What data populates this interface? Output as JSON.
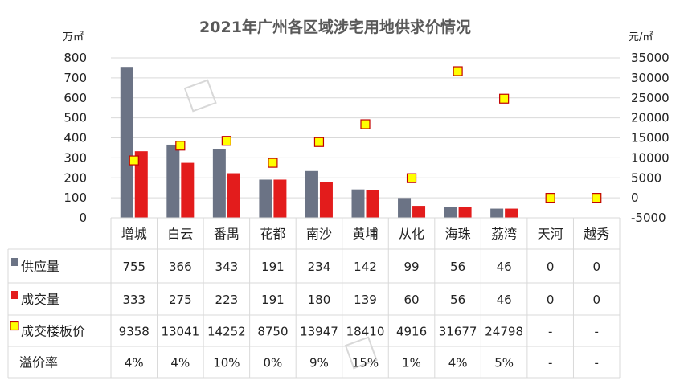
{
  "chart_data": {
    "type": "bar",
    "title": "2021年广州各区域涉宅用地供求价情况",
    "y_left_unit": "万㎡",
    "y_right_unit": "元/㎡",
    "ylim_left": [
      0,
      800
    ],
    "yticks_left": [
      "0",
      "100",
      "200",
      "300",
      "400",
      "500",
      "600",
      "700",
      "800"
    ],
    "ylim_right": [
      -5000,
      35000
    ],
    "yticks_right": [
      "-5000",
      "0",
      "5000",
      "10000",
      "15000",
      "20000",
      "25000",
      "30000",
      "35000"
    ],
    "categories": [
      "增城",
      "白云",
      "番禺",
      "花都",
      "南沙",
      "黄埔",
      "从化",
      "海珠",
      "荔湾",
      "天河",
      "越秀"
    ],
    "series": [
      {
        "name": "供应量",
        "type": "bar",
        "axis": "left",
        "color": "#6b7385",
        "values": [
          755,
          366,
          343,
          191,
          234,
          142,
          99,
          56,
          46,
          0,
          0
        ],
        "labels": [
          "755",
          "366",
          "343",
          "191",
          "234",
          "142",
          "99",
          "56",
          "46",
          "0",
          "0"
        ]
      },
      {
        "name": "成交量",
        "type": "bar",
        "axis": "left",
        "color": "#e31c1c",
        "values": [
          333,
          275,
          223,
          191,
          180,
          139,
          60,
          56,
          46,
          0,
          0
        ],
        "labels": [
          "333",
          "275",
          "223",
          "191",
          "180",
          "139",
          "60",
          "56",
          "46",
          "0",
          "0"
        ]
      },
      {
        "name": "成交楼板价",
        "type": "scatter",
        "axis": "right",
        "color": "#ffff00",
        "edge_color": "#c00000",
        "values": [
          9358,
          13041,
          14252,
          8750,
          13947,
          18410,
          4916,
          31677,
          24798,
          0,
          0
        ],
        "labels": [
          "9358",
          "13041",
          "14252",
          "8750",
          "13947",
          "18410",
          "4916",
          "31677",
          "24798",
          "-",
          "-"
        ]
      }
    ],
    "extra_rows": [
      {
        "name": "溢价率",
        "labels": [
          "4%",
          "4%",
          "10%",
          "0%",
          "9%",
          "15%",
          "1%",
          "4%",
          "5%",
          "-",
          "-"
        ]
      }
    ],
    "grid": true,
    "legend": "data-table"
  }
}
